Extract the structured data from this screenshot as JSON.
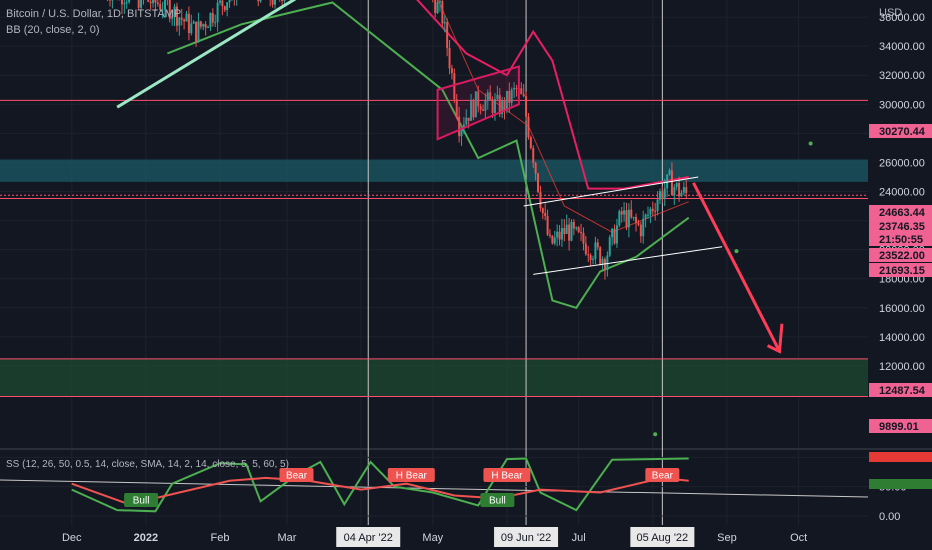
{
  "legend": {
    "symbol_line": "Bitcoin / U.S. Dollar, 1D, BITSTAMP",
    "bb_line": "BB (20, close, 2, 0)",
    "ss_line": "SS (12, 26, 50, 0.5, 14, close, SMA, 14, 2, 14, close, 5, 5, 60, 5)"
  },
  "colors": {
    "background": "#131722",
    "up": "#26a69a",
    "down": "#ef5350",
    "bb_basis": "#e53935",
    "bb_upper": "#e91e63",
    "bb_lower": "#4caf50",
    "annotation_pink": "#d81b60",
    "trend_white": "#ffffff",
    "trend_mint": "#9be8c4",
    "zone_teal": "#1b5a66",
    "zone_green": "#1e4a30",
    "line_red": "#ff4d6d"
  },
  "chart_data": [
    {
      "type": "candlestick",
      "title": "Bitcoin / U.S. Dollar, 1D, BITSTAMP",
      "currency": "USD",
      "ylim": [
        0,
        38000
      ],
      "y_ticks": [
        "36000.00",
        "34000.00",
        "32000.00",
        "30000.00",
        "28000.00",
        "26000.00",
        "24000.00",
        "22000.00",
        "20000.00",
        "18000.00",
        "16000.00",
        "14000.00",
        "12000.00"
      ],
      "x_ticks": [
        "Dec",
        "2022",
        "Feb",
        "Mar",
        "Apr",
        "May",
        "Jun",
        "Jul",
        "Aug",
        "Sep",
        "Oct"
      ],
      "highlighted_dates": [
        "04 Apr '22",
        "09 Jun '22",
        "05 Aug '22"
      ],
      "price_labels": [
        {
          "text": "30270.44",
          "value": 30270.44,
          "kind": "line"
        },
        {
          "text": "24663.44",
          "value": 24663.44,
          "kind": "line"
        },
        {
          "text": "23746.35",
          "value": 23746.35,
          "kind": "last"
        },
        {
          "text": "21:50:55",
          "value": null,
          "kind": "countdown"
        },
        {
          "text": "23522.00",
          "value": 23522.0,
          "kind": "line"
        },
        {
          "text": "21693.15",
          "value": 21693.15,
          "kind": "line"
        },
        {
          "text": "12487.54",
          "value": 12487.54,
          "kind": "line"
        },
        {
          "text": "9899.01",
          "value": 9899.01,
          "kind": "line"
        }
      ],
      "horizontal_lines": [
        30270.44,
        23522.0,
        12487.54,
        9899.01
      ],
      "zones": [
        {
          "from": 24663.44,
          "to": 26200,
          "color": "teal"
        },
        {
          "from": 9899.01,
          "to": 12487.54,
          "color": "green"
        }
      ],
      "close_series": [
        {
          "date": "2021-12-15",
          "close": 37900
        },
        {
          "date": "2022-01-10",
          "close": 36800
        },
        {
          "date": "2022-01-22",
          "close": 35000
        },
        {
          "date": "2022-02-10",
          "close": 38400
        },
        {
          "date": "2022-02-24",
          "close": 37200
        },
        {
          "date": "2022-03-05",
          "close": 38900
        },
        {
          "date": "2022-03-28",
          "close": 43000
        },
        {
          "date": "2022-04-10",
          "close": 42200
        },
        {
          "date": "2022-04-25",
          "close": 39500
        },
        {
          "date": "2022-05-05",
          "close": 36000
        },
        {
          "date": "2022-05-10",
          "close": 31000
        },
        {
          "date": "2022-05-12",
          "close": 28600
        },
        {
          "date": "2022-05-20",
          "close": 30300
        },
        {
          "date": "2022-05-30",
          "close": 29800
        },
        {
          "date": "2022-06-05",
          "close": 31000
        },
        {
          "date": "2022-06-08",
          "close": 30100
        },
        {
          "date": "2022-06-12",
          "close": 26500
        },
        {
          "date": "2022-06-16",
          "close": 22500
        },
        {
          "date": "2022-06-19",
          "close": 20300
        },
        {
          "date": "2022-06-26",
          "close": 21400
        },
        {
          "date": "2022-07-05",
          "close": 20200
        },
        {
          "date": "2022-07-12",
          "close": 19400
        },
        {
          "date": "2022-07-19",
          "close": 22400
        },
        {
          "date": "2022-07-27",
          "close": 21500
        },
        {
          "date": "2022-08-03",
          "close": 23600
        },
        {
          "date": "2022-08-08",
          "close": 24700
        },
        {
          "date": "2022-08-12",
          "close": 24000
        },
        {
          "date": "2022-08-16",
          "close": 23746
        }
      ],
      "bollinger": {
        "basis": [
          {
            "date": "2022-05-01",
            "v": 38000
          },
          {
            "date": "2022-05-20",
            "v": 31000
          },
          {
            "date": "2022-06-10",
            "v": 28500
          },
          {
            "date": "2022-06-25",
            "v": 23000
          },
          {
            "date": "2022-07-15",
            "v": 21200
          },
          {
            "date": "2022-08-16",
            "v": 23300
          }
        ],
        "upper": [
          {
            "date": "2022-04-20",
            "v": 38000
          },
          {
            "date": "2022-05-15",
            "v": 33500
          },
          {
            "date": "2022-06-01",
            "v": 32000
          },
          {
            "date": "2022-06-12",
            "v": 35000
          },
          {
            "date": "2022-06-20",
            "v": 33000
          },
          {
            "date": "2022-07-05",
            "v": 24200
          },
          {
            "date": "2022-07-20",
            "v": 24200
          },
          {
            "date": "2022-08-16",
            "v": 25000
          }
        ],
        "lower": [
          {
            "date": "2022-01-10",
            "v": 33500
          },
          {
            "date": "2022-02-10",
            "v": 35500
          },
          {
            "date": "2022-03-20",
            "v": 37000
          },
          {
            "date": "2022-05-05",
            "v": 31000
          },
          {
            "date": "2022-05-20",
            "v": 26300
          },
          {
            "date": "2022-06-05",
            "v": 27500
          },
          {
            "date": "2022-06-20",
            "v": 16500
          },
          {
            "date": "2022-06-30",
            "v": 16000
          },
          {
            "date": "2022-07-10",
            "v": 18500
          },
          {
            "date": "2022-07-25",
            "v": 19500
          },
          {
            "date": "2022-08-16",
            "v": 22200
          }
        ]
      },
      "annotations": [
        {
          "kind": "pink-channel",
          "label": ""
        },
        {
          "kind": "white-rising-channel",
          "label": ""
        },
        {
          "kind": "mint-trendline",
          "label": ""
        },
        {
          "kind": "red-down-arrow",
          "label": ""
        }
      ]
    },
    {
      "type": "line",
      "title": "SS (12, 26, 50, 0.5, 14, close, SMA, 14, 2, 14, close, 5, 5, 60, 5)",
      "ylim": [
        0,
        100
      ],
      "y_ticks": [
        "100.00",
        "50.00",
        "0.00"
      ],
      "signals": [
        {
          "label": "Bull",
          "date": "2021-12-30",
          "color": "#2e7d32"
        },
        {
          "label": "Bear",
          "date": "2022-03-05",
          "color": "#ef5350"
        },
        {
          "label": "H Bear",
          "date": "2022-04-22",
          "color": "#ef5350"
        },
        {
          "label": "Bull",
          "date": "2022-05-28",
          "color": "#2e7d32"
        },
        {
          "label": "H Bear",
          "date": "2022-06-01",
          "color": "#ef5350"
        },
        {
          "label": "Bear",
          "date": "2022-08-05",
          "color": "#ef5350"
        }
      ],
      "series": [
        {
          "color": "#4caf50",
          "values": [
            [
              "2021-12-01",
              45
            ],
            [
              "2021-12-20",
              10
            ],
            [
              "2022-01-05",
              8
            ],
            [
              "2022-01-12",
              55
            ],
            [
              "2022-02-01",
              90
            ],
            [
              "2022-02-12",
              88
            ],
            [
              "2022-02-18",
              25
            ],
            [
              "2022-03-05",
              70
            ],
            [
              "2022-03-15",
              92
            ],
            [
              "2022-03-25",
              20
            ],
            [
              "2022-04-05",
              92
            ],
            [
              "2022-04-15",
              50
            ],
            [
              "2022-05-01",
              40
            ],
            [
              "2022-05-20",
              18
            ],
            [
              "2022-06-01",
              97
            ],
            [
              "2022-06-09",
              98
            ],
            [
              "2022-06-15",
              40
            ],
            [
              "2022-06-30",
              10
            ],
            [
              "2022-07-15",
              96
            ],
            [
              "2022-08-16",
              98
            ]
          ]
        },
        {
          "color": "#ef5350",
          "values": [
            [
              "2021-12-01",
              55
            ],
            [
              "2021-12-25",
              20
            ],
            [
              "2022-01-15",
              40
            ],
            [
              "2022-02-05",
              60
            ],
            [
              "2022-02-20",
              65
            ],
            [
              "2022-03-10",
              60
            ],
            [
              "2022-04-01",
              45
            ],
            [
              "2022-04-20",
              55
            ],
            [
              "2022-05-10",
              35
            ],
            [
              "2022-05-28",
              30
            ],
            [
              "2022-06-15",
              45
            ],
            [
              "2022-07-10",
              40
            ],
            [
              "2022-08-05",
              65
            ],
            [
              "2022-08-16",
              60
            ]
          ]
        }
      ]
    }
  ]
}
